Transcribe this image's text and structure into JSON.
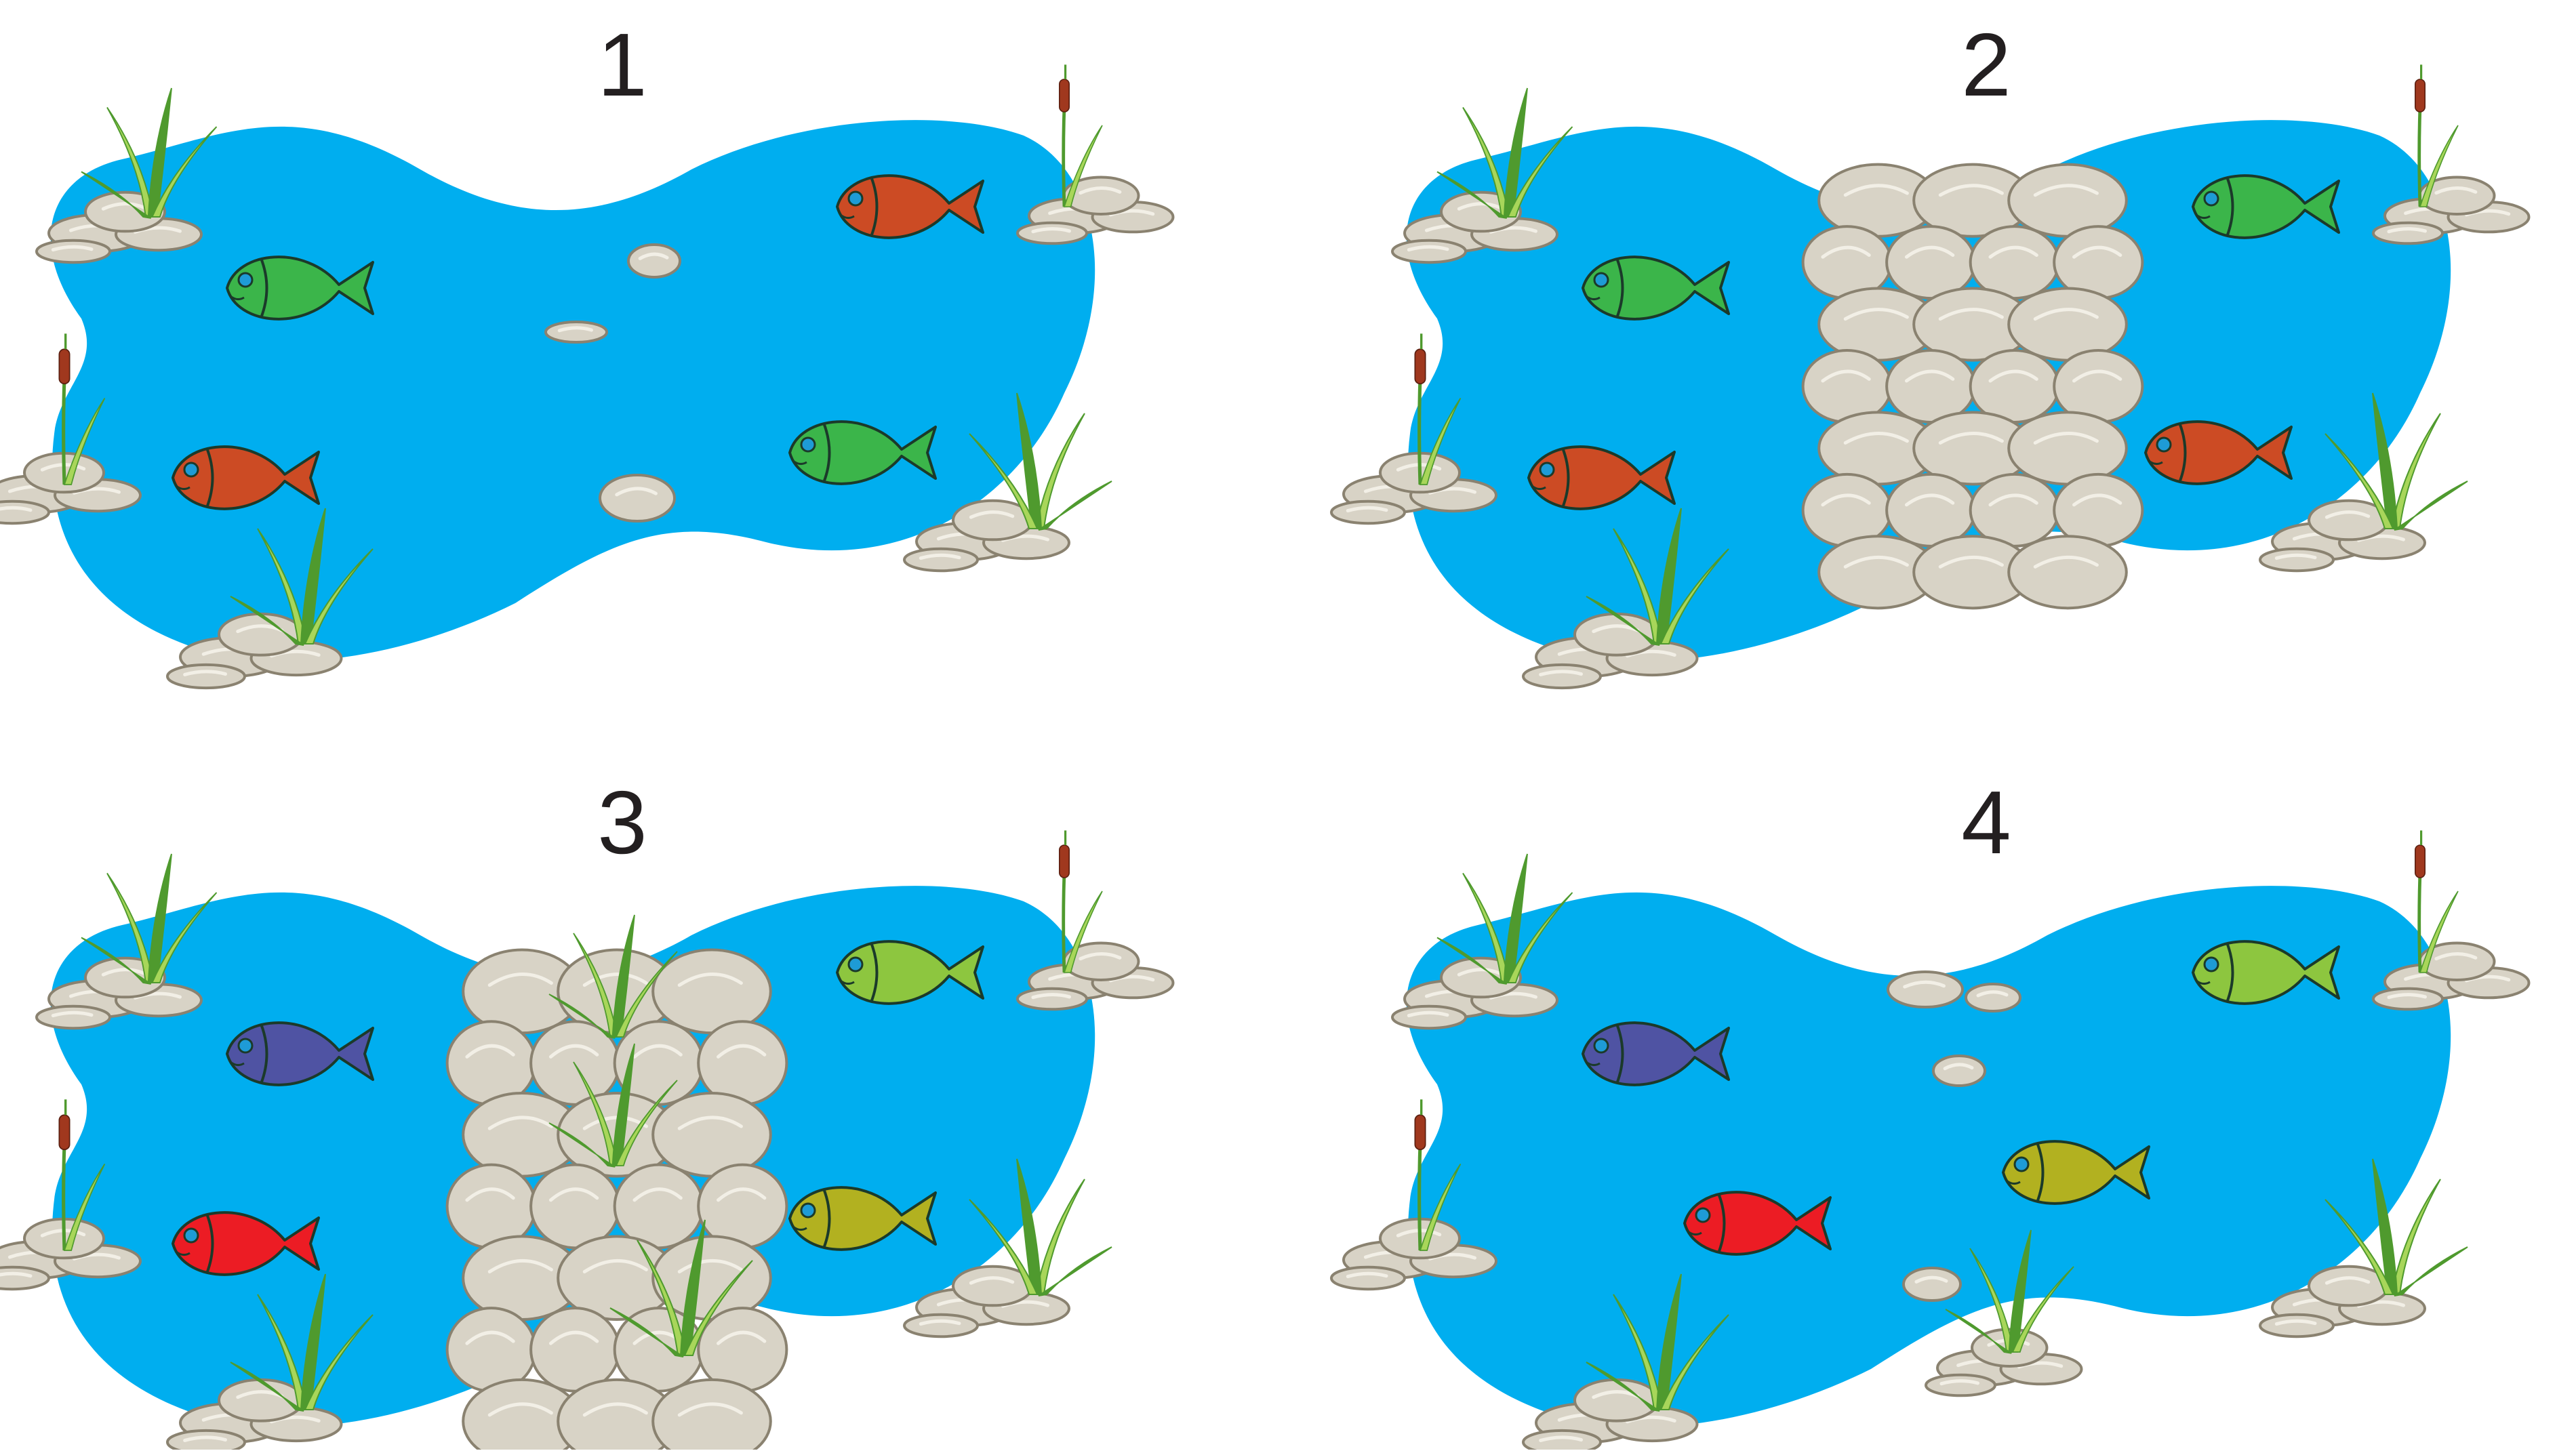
{
  "colors": {
    "water": "#00aeef",
    "rock_fill": "#d8d3c6",
    "rock_stroke": "#8a8270",
    "grass_light": "#a8d65a",
    "grass_dark": "#4f9a2e",
    "cattail_head": "#a0381e",
    "fish_outline": "#1b3a2a",
    "fish_eye": "#1e9bd6"
  },
  "panels": [
    {
      "label": "1",
      "barrier": "none",
      "fish": [
        {
          "color": "#3bb54a",
          "facing": "left"
        },
        {
          "color": "#cc4b24",
          "facing": "left"
        },
        {
          "color": "#cc4b24",
          "facing": "left"
        },
        {
          "color": "#3bb54a",
          "facing": "left"
        }
      ]
    },
    {
      "label": "2",
      "barrier": "rock-wall",
      "fish": [
        {
          "color": "#3bb54a",
          "facing": "left"
        },
        {
          "color": "#cc4b24",
          "facing": "left"
        },
        {
          "color": "#3bb54a",
          "facing": "left"
        },
        {
          "color": "#cc4b24",
          "facing": "left"
        }
      ]
    },
    {
      "label": "3",
      "barrier": "rock-wall-with-grass",
      "fish": [
        {
          "color": "#4f53a3",
          "facing": "left"
        },
        {
          "color": "#ec1c24",
          "facing": "left"
        },
        {
          "color": "#8dc63f",
          "facing": "left"
        },
        {
          "color": "#b2b120",
          "facing": "left"
        }
      ]
    },
    {
      "label": "4",
      "barrier": "scattered-rocks",
      "fish": [
        {
          "color": "#4f53a3",
          "facing": "left"
        },
        {
          "color": "#ec1c24",
          "facing": "left"
        },
        {
          "color": "#8dc63f",
          "facing": "left"
        },
        {
          "color": "#b2b120",
          "facing": "left"
        }
      ]
    }
  ]
}
